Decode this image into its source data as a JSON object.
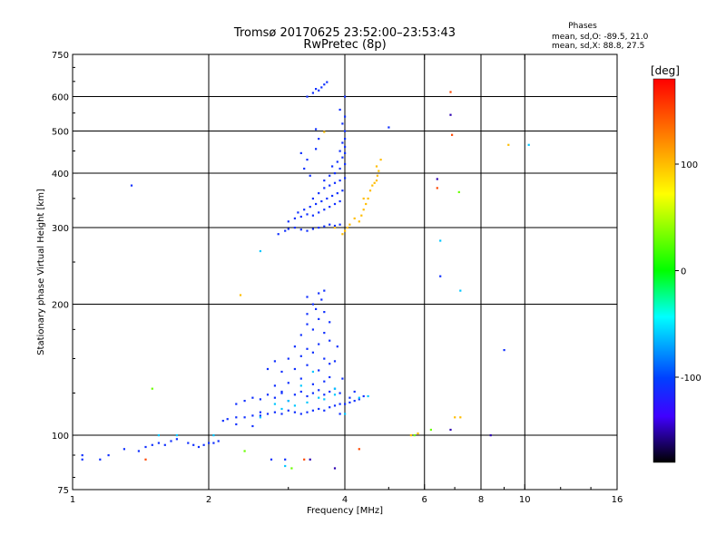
{
  "chart_data": {
    "type": "scatter",
    "title": "Tromsø 20170625 23:52:00–23:53:43",
    "subtitle": "RwPretec (8p)",
    "xlabel": "Frequency [MHz]",
    "ylabel": "Stationary phase Virtual Height [km]",
    "x_scale": "log",
    "y_scale": "log",
    "xlim": [
      1,
      16
    ],
    "ylim": [
      75,
      750
    ],
    "x_ticks": [
      "1",
      "2",
      "4",
      "6",
      "8",
      "10",
      "16"
    ],
    "y_ticks": [
      "75",
      "100",
      "200",
      "300",
      "400",
      "500",
      "600",
      "750"
    ],
    "x_gridlines": [
      2,
      4,
      6,
      8,
      10
    ],
    "y_gridlines": [
      100,
      200,
      300,
      400,
      500,
      600
    ],
    "grid": true,
    "info": {
      "heading": "Phases",
      "line1": "mean, sd,O: -89.5, 21.0",
      "line2": "mean, sd,X:  88.8, 27.5"
    },
    "colorbar": {
      "label": "[deg]",
      "range": [
        -180,
        180
      ],
      "ticks": [
        "100",
        "0",
        "-100"
      ],
      "tick_values": [
        100,
        0,
        -100
      ],
      "gradient_colors": [
        "#ff0000",
        "#ff8000",
        "#ffff00",
        "#00ff00",
        "#00ffff",
        "#0040ff",
        "#4000ff",
        "#000000"
      ]
    },
    "series": [
      {
        "phase_deg": -110,
        "points": [
          [
            1.05,
            88
          ],
          [
            1.15,
            88
          ],
          [
            1.2,
            90
          ],
          [
            1.3,
            93
          ],
          [
            1.4,
            92
          ],
          [
            1.45,
            94
          ],
          [
            1.5,
            95
          ],
          [
            1.55,
            96
          ],
          [
            1.6,
            95
          ],
          [
            1.65,
            97
          ],
          [
            1.7,
            98
          ],
          [
            1.8,
            96
          ],
          [
            1.85,
            95
          ],
          [
            1.9,
            94
          ],
          [
            1.95,
            95
          ],
          [
            2.0,
            96
          ],
          [
            2.05,
            96
          ],
          [
            2.1,
            97
          ],
          [
            2.15,
            108
          ],
          [
            2.2,
            109
          ],
          [
            2.3,
            110
          ],
          [
            2.4,
            110
          ],
          [
            2.5,
            111
          ],
          [
            2.6,
            111
          ],
          [
            2.7,
            112
          ],
          [
            2.8,
            113
          ],
          [
            2.9,
            112
          ],
          [
            3.0,
            114
          ],
          [
            3.1,
            113
          ],
          [
            3.2,
            112
          ],
          [
            3.3,
            113
          ],
          [
            3.4,
            114
          ],
          [
            3.5,
            115
          ],
          [
            3.6,
            114
          ],
          [
            3.7,
            116
          ],
          [
            3.8,
            117
          ],
          [
            3.9,
            118
          ],
          [
            4.0,
            118
          ],
          [
            4.1,
            119
          ],
          [
            4.2,
            120
          ],
          [
            4.3,
            121
          ],
          [
            4.4,
            123
          ],
          [
            2.3,
            118
          ],
          [
            2.4,
            120
          ],
          [
            2.5,
            122
          ],
          [
            2.6,
            121
          ],
          [
            2.7,
            124
          ],
          [
            2.8,
            122
          ],
          [
            2.9,
            125
          ],
          [
            3.0,
            120
          ],
          [
            3.1,
            124
          ],
          [
            3.2,
            126
          ],
          [
            3.3,
            123
          ],
          [
            3.4,
            125
          ],
          [
            3.5,
            127
          ],
          [
            3.6,
            124
          ],
          [
            3.7,
            126
          ],
          [
            3.8,
            128
          ],
          [
            3.9,
            125
          ],
          [
            2.8,
            130
          ],
          [
            3.0,
            132
          ],
          [
            3.2,
            135
          ],
          [
            3.4,
            131
          ],
          [
            3.6,
            133
          ],
          [
            3.7,
            136
          ],
          [
            2.9,
            140
          ],
          [
            3.1,
            142
          ],
          [
            3.3,
            145
          ],
          [
            3.5,
            141
          ],
          [
            3.7,
            146
          ],
          [
            2.8,
            148
          ],
          [
            3.0,
            150
          ],
          [
            3.2,
            152
          ],
          [
            3.4,
            155
          ],
          [
            3.6,
            150
          ],
          [
            3.8,
            148
          ],
          [
            3.1,
            160
          ],
          [
            3.3,
            158
          ],
          [
            3.5,
            162
          ],
          [
            3.7,
            165
          ],
          [
            3.2,
            170
          ],
          [
            3.4,
            175
          ],
          [
            3.6,
            172
          ],
          [
            3.3,
            180
          ],
          [
            3.5,
            185
          ],
          [
            3.7,
            182
          ],
          [
            3.3,
            190
          ],
          [
            3.45,
            195
          ],
          [
            3.6,
            192
          ],
          [
            3.4,
            200
          ],
          [
            3.55,
            205
          ],
          [
            3.5,
            212
          ],
          [
            3.6,
            215
          ],
          [
            3.3,
            208
          ],
          [
            2.7,
            142
          ],
          [
            2.9,
            126
          ],
          [
            2.6,
            113
          ],
          [
            2.3,
            106
          ],
          [
            2.5,
            105
          ],
          [
            3.9,
            112
          ],
          [
            3.95,
            135
          ],
          [
            3.85,
            160
          ],
          [
            4.1,
            122
          ],
          [
            4.2,
            126
          ],
          [
            2.85,
            290
          ],
          [
            2.95,
            295
          ],
          [
            3.0,
            298
          ],
          [
            3.1,
            300
          ],
          [
            3.2,
            297
          ],
          [
            3.3,
            295
          ],
          [
            3.4,
            298
          ],
          [
            3.5,
            300
          ],
          [
            3.6,
            302
          ],
          [
            3.7,
            305
          ],
          [
            3.8,
            303
          ],
          [
            3.9,
            305
          ],
          [
            3.0,
            310
          ],
          [
            3.1,
            315
          ],
          [
            3.2,
            318
          ],
          [
            3.3,
            322
          ],
          [
            3.4,
            320
          ],
          [
            3.5,
            325
          ],
          [
            3.6,
            330
          ],
          [
            3.7,
            335
          ],
          [
            3.8,
            340
          ],
          [
            3.9,
            345
          ],
          [
            3.15,
            325
          ],
          [
            3.25,
            330
          ],
          [
            3.35,
            335
          ],
          [
            3.45,
            340
          ],
          [
            3.55,
            345
          ],
          [
            3.65,
            350
          ],
          [
            3.75,
            355
          ],
          [
            3.85,
            360
          ],
          [
            3.95,
            365
          ],
          [
            3.4,
            350
          ],
          [
            3.5,
            360
          ],
          [
            3.6,
            370
          ],
          [
            3.7,
            375
          ],
          [
            3.8,
            380
          ],
          [
            3.9,
            385
          ],
          [
            4.0,
            390
          ],
          [
            3.6,
            385
          ],
          [
            3.7,
            395
          ],
          [
            3.8,
            400
          ],
          [
            3.9,
            410
          ],
          [
            4.0,
            420
          ],
          [
            3.75,
            415
          ],
          [
            3.85,
            425
          ],
          [
            3.95,
            435
          ],
          [
            4.0,
            445
          ],
          [
            3.9,
            450
          ],
          [
            4.0,
            460
          ],
          [
            3.95,
            470
          ],
          [
            4.0,
            480
          ],
          [
            4.0,
            500
          ],
          [
            3.95,
            520
          ],
          [
            4.0,
            540
          ],
          [
            3.9,
            560
          ],
          [
            4.0,
            600
          ],
          [
            3.35,
            395
          ],
          [
            3.25,
            410
          ],
          [
            3.3,
            430
          ],
          [
            3.2,
            445
          ],
          [
            3.45,
            455
          ],
          [
            3.5,
            480
          ],
          [
            3.45,
            505
          ],
          [
            3.5,
            620
          ],
          [
            3.55,
            630
          ],
          [
            3.6,
            640
          ],
          [
            3.65,
            648
          ],
          [
            3.4,
            612
          ],
          [
            3.3,
            600
          ],
          [
            3.45,
            625
          ],
          [
            6.5,
            232
          ],
          [
            1.35,
            375
          ],
          [
            5.0,
            510
          ],
          [
            9.0,
            157
          ],
          [
            1.05,
            90
          ],
          [
            2.75,
            88
          ],
          [
            2.95,
            88
          ]
        ]
      },
      {
        "phase_deg": -60,
        "points": [
          [
            1.55,
            100
          ],
          [
            1.7,
            100
          ],
          [
            2.05,
            100
          ],
          [
            2.6,
            110
          ],
          [
            2.8,
            118
          ],
          [
            3.0,
            120
          ],
          [
            3.2,
            130
          ],
          [
            3.4,
            140
          ],
          [
            3.5,
            122
          ],
          [
            3.8,
            124
          ],
          [
            4.0,
            112
          ],
          [
            4.3,
            122
          ],
          [
            4.5,
            123
          ],
          [
            2.9,
            115
          ],
          [
            3.1,
            117
          ],
          [
            3.3,
            119
          ],
          [
            3.6,
            121
          ],
          [
            2.95,
            85
          ],
          [
            7.2,
            215
          ],
          [
            2.6,
            265
          ],
          [
            10.2,
            465
          ],
          [
            6.5,
            280
          ],
          [
            3.8,
            128
          ]
        ]
      },
      {
        "phase_deg": 30,
        "points": [
          [
            1.5,
            128
          ],
          [
            2.4,
            92
          ],
          [
            3.05,
            84
          ],
          [
            6.2,
            103
          ],
          [
            5.7,
            100
          ],
          [
            7.15,
            362
          ]
        ]
      },
      {
        "phase_deg": 100,
        "points": [
          [
            3.95,
            290
          ],
          [
            4.0,
            295
          ],
          [
            4.05,
            300
          ],
          [
            4.1,
            305
          ],
          [
            4.3,
            310
          ],
          [
            4.35,
            320
          ],
          [
            4.4,
            330
          ],
          [
            4.45,
            340
          ],
          [
            4.5,
            350
          ],
          [
            4.55,
            365
          ],
          [
            4.6,
            375
          ],
          [
            4.65,
            380
          ],
          [
            4.7,
            385
          ],
          [
            4.72,
            395
          ],
          [
            4.75,
            405
          ],
          [
            4.7,
            415
          ],
          [
            4.8,
            430
          ],
          [
            4.2,
            315
          ],
          [
            2.35,
            210
          ],
          [
            5.6,
            100
          ],
          [
            5.8,
            101
          ],
          [
            7.0,
            110
          ],
          [
            7.2,
            110
          ],
          [
            9.2,
            465
          ],
          [
            3.8,
            300
          ],
          [
            4.4,
            350
          ],
          [
            3.6,
            498
          ]
        ]
      },
      {
        "phase_deg": 150,
        "points": [
          [
            6.4,
            370
          ],
          [
            6.9,
            490
          ],
          [
            6.85,
            615
          ],
          [
            4.3,
            93
          ],
          [
            1.45,
            88
          ],
          [
            3.25,
            88
          ]
        ]
      },
      {
        "phase_deg": -150,
        "points": [
          [
            6.85,
            545
          ],
          [
            6.85,
            103
          ],
          [
            8.4,
            100
          ],
          [
            6.4,
            388
          ],
          [
            3.35,
            88
          ],
          [
            3.8,
            84
          ]
        ]
      }
    ]
  }
}
